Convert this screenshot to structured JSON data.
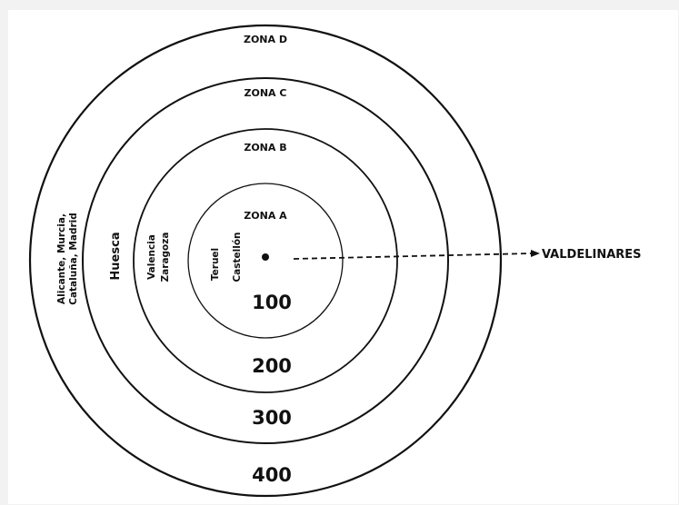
{
  "zones": {
    "d": {
      "label": "ZONA D",
      "distance": "400",
      "cities": [
        "Alicante, Murcia,",
        "Cataluña, Madrid"
      ]
    },
    "c": {
      "label": "ZONA C",
      "distance": "300",
      "cities": [
        "Huesca"
      ]
    },
    "b": {
      "label": "ZONA B",
      "distance": "200",
      "cities": [
        "Valencia",
        "Zaragoza"
      ]
    },
    "a": {
      "label": "ZONA A",
      "distance": "100",
      "cities": [
        "Teruel",
        "Castellón"
      ]
    }
  },
  "destination": {
    "label": "VALDELINARES"
  },
  "colors": {
    "ink": "#111111",
    "background": "#ffffff",
    "page": "#f2f2f2"
  }
}
